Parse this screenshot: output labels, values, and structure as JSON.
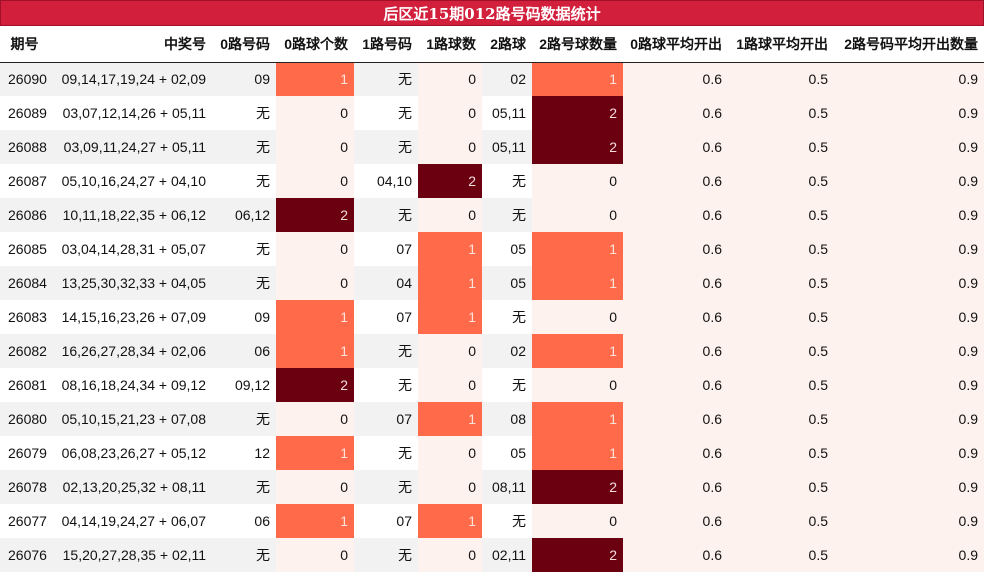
{
  "title": "后区近15期012路号码数据统计",
  "headers": [
    "期号",
    "中奖号",
    "0路号码",
    "0路球个数",
    "1路号码",
    "1路球数",
    "2路球",
    "2路号球数量",
    "0路球平均开出",
    "1路球平均开出",
    "2路号码平均开出数量"
  ],
  "rows": [
    [
      "26090",
      "09,14,17,19,24 + 02,09",
      "09",
      "1",
      "无",
      "0",
      "02",
      "1",
      "0.6",
      "0.5",
      "0.9"
    ],
    [
      "26089",
      "03,07,12,14,26 + 05,11",
      "无",
      "0",
      "无",
      "0",
      "05,11",
      "2",
      "0.6",
      "0.5",
      "0.9"
    ],
    [
      "26088",
      "03,09,11,24,27 + 05,11",
      "无",
      "0",
      "无",
      "0",
      "05,11",
      "2",
      "0.6",
      "0.5",
      "0.9"
    ],
    [
      "26087",
      "05,10,16,24,27 + 04,10",
      "无",
      "0",
      "04,10",
      "2",
      "无",
      "0",
      "0.6",
      "0.5",
      "0.9"
    ],
    [
      "26086",
      "10,11,18,22,35 + 06,12",
      "06,12",
      "2",
      "无",
      "0",
      "无",
      "0",
      "0.6",
      "0.5",
      "0.9"
    ],
    [
      "26085",
      "03,04,14,28,31 + 05,07",
      "无",
      "0",
      "07",
      "1",
      "05",
      "1",
      "0.6",
      "0.5",
      "0.9"
    ],
    [
      "26084",
      "13,25,30,32,33 + 04,05",
      "无",
      "0",
      "04",
      "1",
      "05",
      "1",
      "0.6",
      "0.5",
      "0.9"
    ],
    [
      "26083",
      "14,15,16,23,26 + 07,09",
      "09",
      "1",
      "07",
      "1",
      "无",
      "0",
      "0.6",
      "0.5",
      "0.9"
    ],
    [
      "26082",
      "16,26,27,28,34 + 02,06",
      "06",
      "1",
      "无",
      "0",
      "02",
      "1",
      "0.6",
      "0.5",
      "0.9"
    ],
    [
      "26081",
      "08,16,18,24,34 + 09,12",
      "09,12",
      "2",
      "无",
      "0",
      "无",
      "0",
      "0.6",
      "0.5",
      "0.9"
    ],
    [
      "26080",
      "05,10,15,21,23 + 07,08",
      "无",
      "0",
      "07",
      "1",
      "08",
      "1",
      "0.6",
      "0.5",
      "0.9"
    ],
    [
      "26079",
      "06,08,23,26,27 + 05,12",
      "12",
      "1",
      "无",
      "0",
      "05",
      "1",
      "0.6",
      "0.5",
      "0.9"
    ],
    [
      "26078",
      "02,13,20,25,32 + 08,11",
      "无",
      "0",
      "无",
      "0",
      "08,11",
      "2",
      "0.6",
      "0.5",
      "0.9"
    ],
    [
      "26077",
      "04,14,19,24,27 + 06,07",
      "06",
      "1",
      "07",
      "1",
      "无",
      "0",
      "0.6",
      "0.5",
      "0.9"
    ],
    [
      "26076",
      "15,20,27,28,35 + 02,11",
      "无",
      "0",
      "无",
      "0",
      "02,11",
      "2",
      "0.6",
      "0.5",
      "0.9"
    ]
  ],
  "colors": {
    "title_bg": "#d21f3c",
    "count_1": "#ff6b4a",
    "count_2": "#6b0010",
    "stat_column_bg": "#fdf2ee",
    "stripe_bg": "#f2f2f2"
  }
}
